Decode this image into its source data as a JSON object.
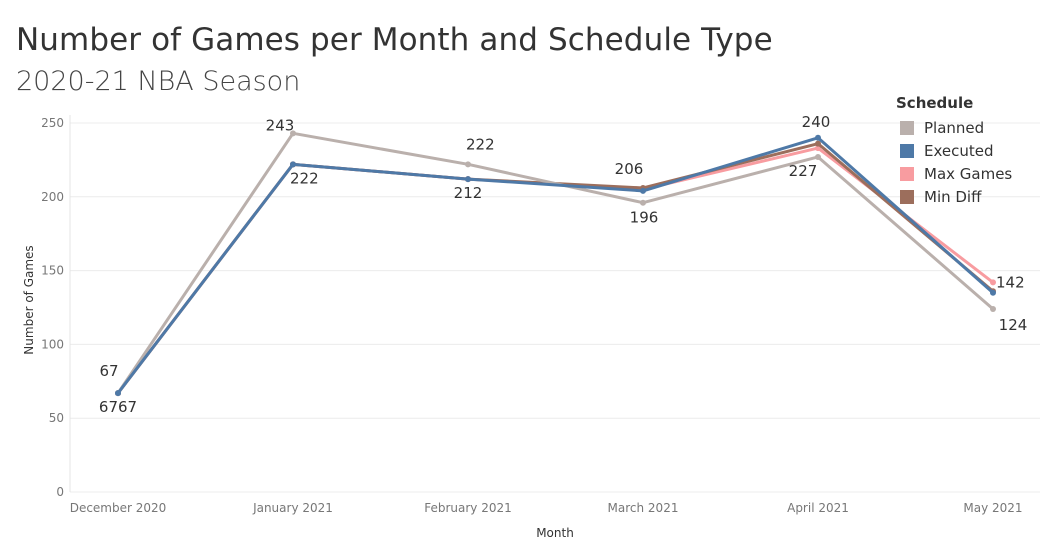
{
  "chart_data": {
    "type": "line",
    "title": "Number of Games per Month and Schedule Type",
    "subtitle": "2020-21 NBA Season",
    "xlabel": "Month",
    "ylabel": "Number of Games",
    "categories": [
      "December 2020",
      "January 2021",
      "February 2021",
      "March 2021",
      "April 2021",
      "May 2021"
    ],
    "ylim": [
      0,
      250
    ],
    "yticks": [
      0,
      50,
      100,
      150,
      200,
      250
    ],
    "grid": true,
    "legend_title": "Schedule",
    "legend_position": "top-right",
    "series": [
      {
        "name": "Max Games",
        "color": "#f89ca0",
        "values": [
          67,
          222,
          212,
          205,
          233,
          142
        ]
      },
      {
        "name": "Min Diff",
        "color": "#9c6e5c",
        "values": [
          67,
          222,
          212,
          206,
          236,
          136
        ]
      },
      {
        "name": "Planned",
        "color": "#bab0ac",
        "values": [
          67,
          243,
          222,
          196,
          227,
          124
        ]
      },
      {
        "name": "Executed",
        "color": "#4e79a7",
        "values": [
          67,
          222,
          212,
          204,
          240,
          135
        ]
      }
    ],
    "legend_order": [
      "Planned",
      "Executed",
      "Max Games",
      "Min Diff"
    ],
    "data_labels": [
      "67",
      "6767",
      "243",
      "222",
      "222",
      "212",
      "206",
      "196",
      "240",
      "227",
      "142",
      "124"
    ]
  }
}
